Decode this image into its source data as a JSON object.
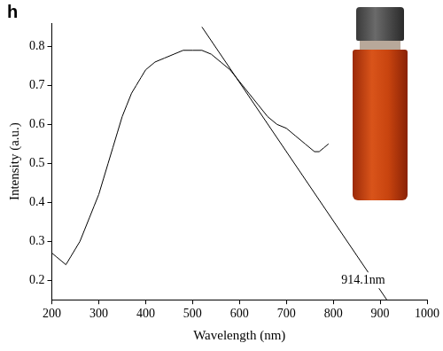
{
  "chart_data": {
    "type": "line",
    "panel": "h",
    "x_label": "Wavelength (nm)",
    "y_label": "Intensity (a.u.)",
    "color": "#000000",
    "x": [
      200,
      210,
      220,
      230,
      240,
      250,
      260,
      270,
      280,
      290,
      300,
      310,
      320,
      330,
      340,
      350,
      360,
      370,
      380,
      390,
      400,
      420,
      440,
      460,
      480,
      500,
      520,
      540,
      560,
      580,
      600,
      620,
      640,
      660,
      680,
      700,
      720,
      740,
      760,
      770,
      780,
      790
    ],
    "values": [
      0.27,
      0.26,
      0.25,
      0.24,
      0.26,
      0.28,
      0.3,
      0.33,
      0.36,
      0.39,
      0.42,
      0.46,
      0.5,
      0.54,
      0.58,
      0.62,
      0.65,
      0.68,
      0.7,
      0.72,
      0.74,
      0.76,
      0.77,
      0.78,
      0.79,
      0.79,
      0.79,
      0.78,
      0.76,
      0.74,
      0.71,
      0.68,
      0.65,
      0.62,
      0.6,
      0.59,
      0.57,
      0.55,
      0.53,
      0.53,
      0.54,
      0.55
    ],
    "lines": [
      {
        "x": [
          520,
          914.1
        ],
        "values": [
          0.85,
          0.15
        ],
        "color": "#000000"
      }
    ],
    "annotations": [
      {
        "text": "914.1nm",
        "x": 914.1,
        "y": 0.2
      }
    ],
    "xlim": [
      200,
      1000
    ],
    "xticks": [
      200,
      300,
      400,
      500,
      600,
      700,
      800,
      900,
      1000
    ],
    "ylim": [
      0.15,
      0.86
    ],
    "yticks": [
      0.2,
      0.3,
      0.4,
      0.5,
      0.6,
      0.7,
      0.8
    ],
    "grid": false
  }
}
